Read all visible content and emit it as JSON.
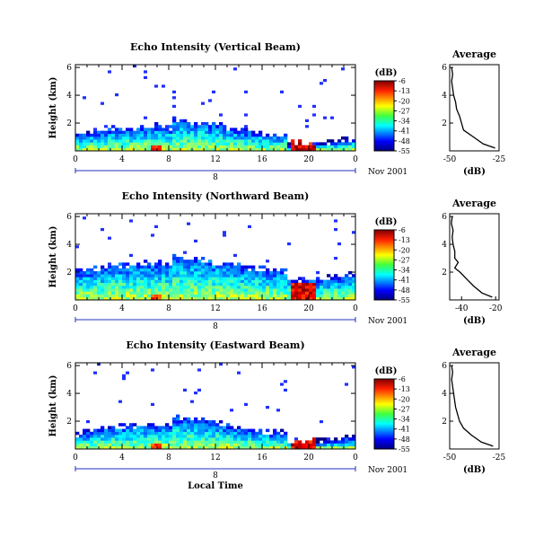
{
  "chart_data": [
    {
      "type": "heatmap",
      "title": "Echo Intensity (Vertical Beam)",
      "ylabel": "Height (km)",
      "yticks": [
        "2",
        "4",
        "6"
      ],
      "xticks": [
        "0",
        "4",
        "8",
        "12",
        "16",
        "20",
        "0"
      ],
      "xlim": [
        0,
        24
      ],
      "ylim": [
        0,
        6.2
      ],
      "date_tick": "8",
      "date_label": "Nov 2001",
      "colorbar": {
        "unit": "(dB)",
        "ticks": [
          "-6",
          "-13",
          "-20",
          "-27",
          "-34",
          "-41",
          "-48",
          "-55"
        ],
        "range": [
          -55,
          -6
        ]
      },
      "profile": {
        "title": "Average",
        "xlabel": "(dB)",
        "xticks": [
          "-50",
          "-25"
        ],
        "xlim": [
          -50,
          -25
        ],
        "yticks": [
          "2",
          "4",
          "6"
        ],
        "ylim": [
          0,
          6.2
        ],
        "height_km": [
          0.2,
          0.5,
          1.0,
          1.5,
          2.0,
          2.5,
          3.0,
          3.5,
          4.0,
          4.5,
          5.0,
          5.5,
          6.0
        ],
        "mean_db": [
          -27,
          -33,
          -38,
          -43,
          -44,
          -45,
          -46.5,
          -47,
          -48,
          -48.5,
          -49,
          -48.5,
          -49
        ]
      }
    },
    {
      "type": "heatmap",
      "title": "Echo Intensity (Northward Beam)",
      "ylabel": "Height (km)",
      "yticks": [
        "2",
        "4",
        "6"
      ],
      "xticks": [
        "0",
        "4",
        "8",
        "12",
        "16",
        "20",
        "0"
      ],
      "xlim": [
        0,
        24
      ],
      "ylim": [
        0,
        6.2
      ],
      "date_tick": "8",
      "date_label": "Nov 2001",
      "colorbar": {
        "unit": "(dB)",
        "ticks": [
          "-6",
          "-13",
          "-20",
          "-27",
          "-34",
          "-41",
          "-48",
          "-55"
        ],
        "range": [
          -55,
          -6
        ]
      },
      "profile": {
        "title": "Average",
        "xlabel": "(dB)",
        "xticks": [
          "-40",
          "-20"
        ],
        "xlim": [
          -47,
          -18
        ],
        "yticks": [
          "2",
          "4",
          "6"
        ],
        "ylim": [
          0,
          6.2
        ],
        "height_km": [
          0.2,
          0.5,
          1.0,
          1.5,
          2.0,
          2.3,
          2.7,
          3.0,
          3.5,
          4.0,
          4.5,
          5.0,
          5.5,
          6.0
        ],
        "mean_db": [
          -22,
          -28,
          -33,
          -37,
          -41,
          -44,
          -42,
          -44,
          -44,
          -45,
          -45.5,
          -45,
          -46,
          -45.5
        ]
      }
    },
    {
      "type": "heatmap",
      "title": "Echo Intensity (Eastward Beam)",
      "ylabel": "Height (km)",
      "yticks": [
        "2",
        "4",
        "6"
      ],
      "xticks": [
        "0",
        "4",
        "8",
        "12",
        "16",
        "20",
        "0"
      ],
      "xlim": [
        0,
        24
      ],
      "ylim": [
        0,
        6.2
      ],
      "date_tick": "8",
      "date_label": "Nov 2001",
      "xlabel": "Local Time",
      "colorbar": {
        "unit": "(dB)",
        "ticks": [
          "-6",
          "-13",
          "-20",
          "-27",
          "-34",
          "-41",
          "-48",
          "-55"
        ],
        "range": [
          -55,
          -6
        ]
      },
      "profile": {
        "title": "Average",
        "xlabel": "(dB)",
        "xticks": [
          "-50",
          "-25"
        ],
        "xlim": [
          -50,
          -25
        ],
        "yticks": [
          "2",
          "4",
          "6"
        ],
        "ylim": [
          0,
          6.2
        ],
        "height_km": [
          0.2,
          0.5,
          1.0,
          1.5,
          2.0,
          2.5,
          3.0,
          3.5,
          4.0,
          4.5,
          5.0,
          5.5,
          6.0
        ],
        "mean_db": [
          -28,
          -34,
          -39,
          -43,
          -45,
          -46,
          -47,
          -47.5,
          -48,
          -48.5,
          -49,
          -48.5,
          -49
        ]
      }
    }
  ]
}
